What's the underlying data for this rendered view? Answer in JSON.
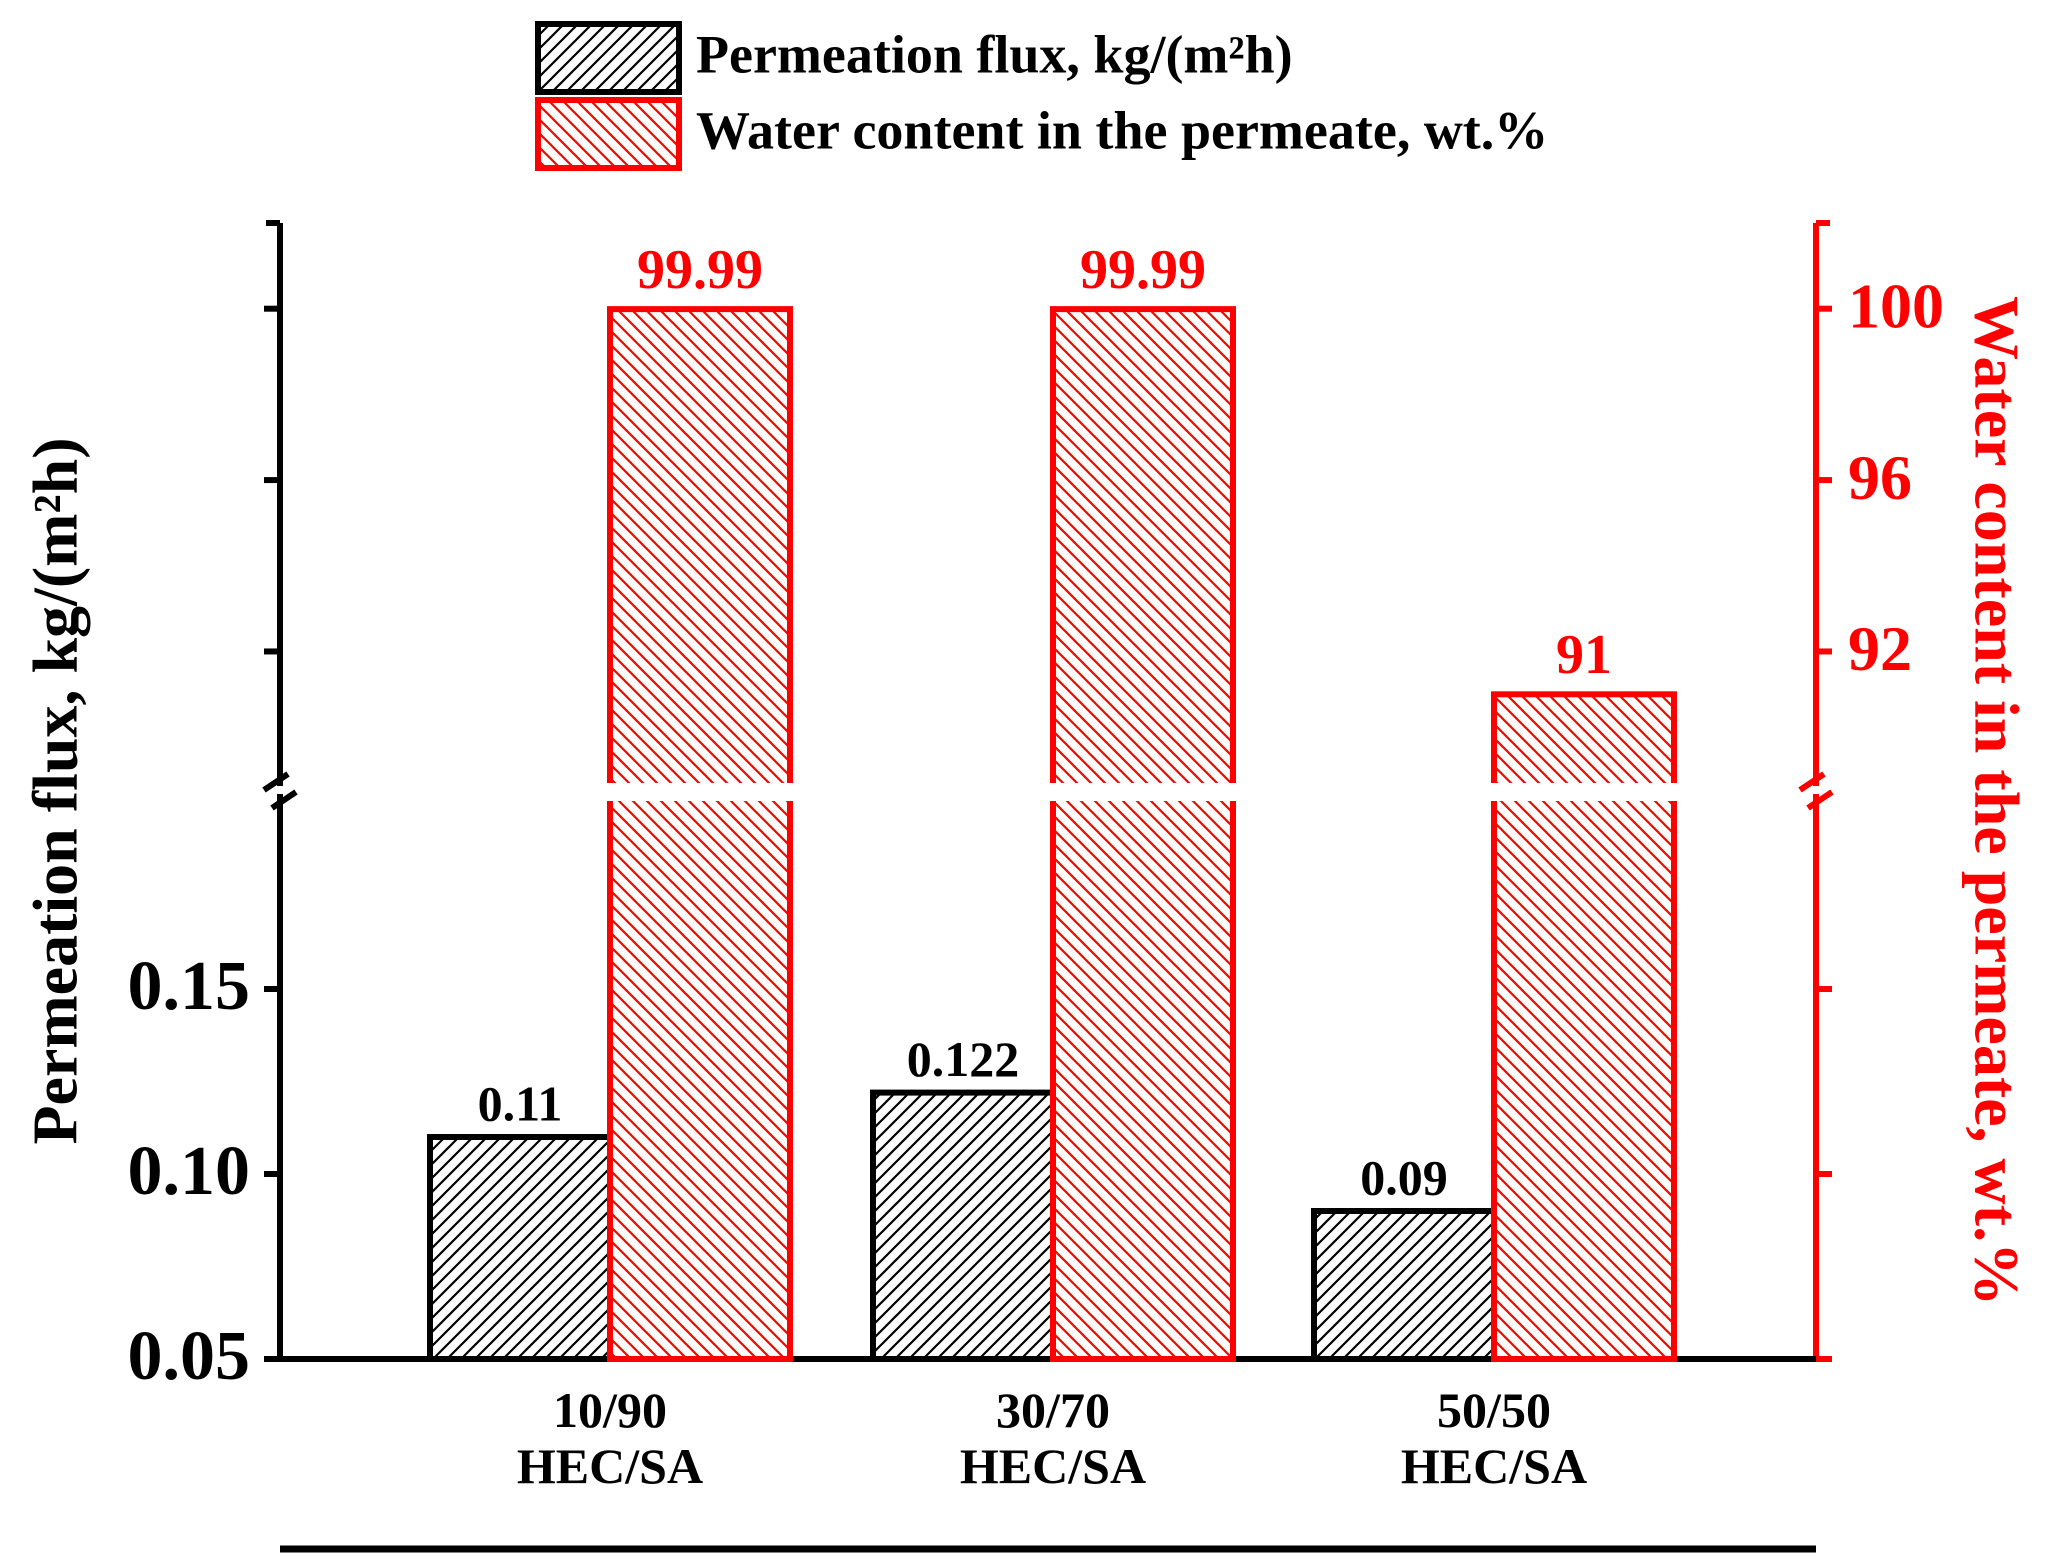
{
  "chart_data": {
    "type": "bar",
    "categories": [
      "10/90\nHEC/SA",
      "30/70\nHEC/SA",
      "50/50\nHEC/SA"
    ],
    "series": [
      {
        "name": "Permeation flux, kg/(m²h)",
        "color": "#000000",
        "values": [
          0.11,
          0.122,
          0.09
        ]
      },
      {
        "name": "Water content in the permeate, wt.%",
        "color": "#ff0000",
        "values": [
          99.99,
          99.99,
          91
        ],
        "axis": "y2"
      }
    ],
    "ylabel": "Permeation flux, kg/(m²h)",
    "y2label": "Water content in the permeate, wt.%",
    "ylim": [
      0.05,
      0.2
    ],
    "yticks": [
      0.05,
      {
        "value": 0.1,
        "label": "0.10"
      },
      0.15
    ],
    "y2lim": [
      89,
      102
    ],
    "y2ticks": [
      92,
      96,
      100
    ]
  }
}
